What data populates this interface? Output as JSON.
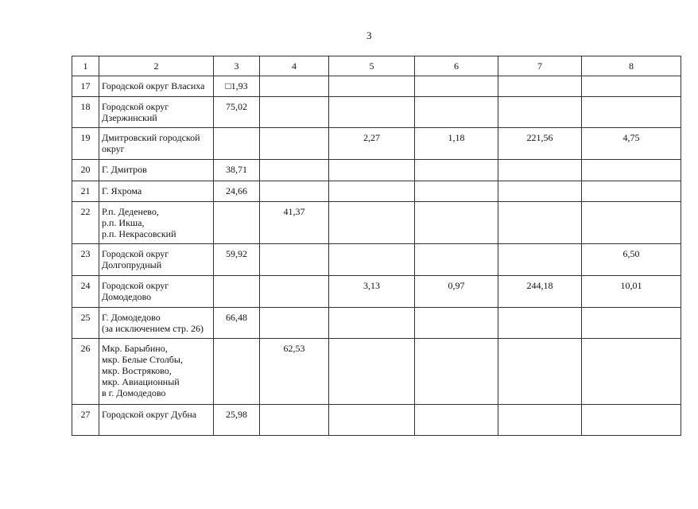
{
  "page_number": "3",
  "table": {
    "headers": [
      "1",
      "2",
      "3",
      "4",
      "5",
      "6",
      "7",
      "8"
    ],
    "rows": [
      [
        "17",
        "Городской округ Власиха",
        "□1,93",
        "",
        "",
        "",
        "",
        ""
      ],
      [
        "18",
        "Городской округ\nДзержинский",
        "75,02",
        "",
        "",
        "",
        "",
        ""
      ],
      [
        "19",
        "Дмитровский городской\nокруг",
        "",
        "",
        "2,27",
        "1,18",
        "221,56",
        "4,75"
      ],
      [
        "20",
        "Г. Дмитров",
        "38,71",
        "",
        "",
        "",
        "",
        ""
      ],
      [
        "21",
        "Г. Яхрома",
        "24,66",
        "",
        "",
        "",
        "",
        ""
      ],
      [
        "22",
        "Р.п. Деденево,\nр.п. Икша,\nр.п. Некрасовский",
        "",
        "41,37",
        "",
        "",
        "",
        ""
      ],
      [
        "23",
        "Городской округ\nДолгопрудный",
        "59,92",
        "",
        "",
        "",
        "",
        "6,50"
      ],
      [
        "24",
        "Городской округ\nДомодедово",
        "",
        "",
        "3,13",
        "0,97",
        "244,18",
        "10,01"
      ],
      [
        "25",
        "Г. Домодедово\n(за исключением стр. 26)",
        "66,48",
        "",
        "",
        "",
        "",
        ""
      ],
      [
        "26",
        "Мкр. Барыбино,\nмкр. Белые Столбы,\nмкр. Востряково,\nмкр. Авиационный\nв г. Домодедово",
        "",
        "62,53",
        "",
        "",
        "",
        ""
      ],
      [
        "27",
        "Городской округ Дубна",
        "25,98",
        "",
        "",
        "",
        "",
        ""
      ]
    ]
  }
}
